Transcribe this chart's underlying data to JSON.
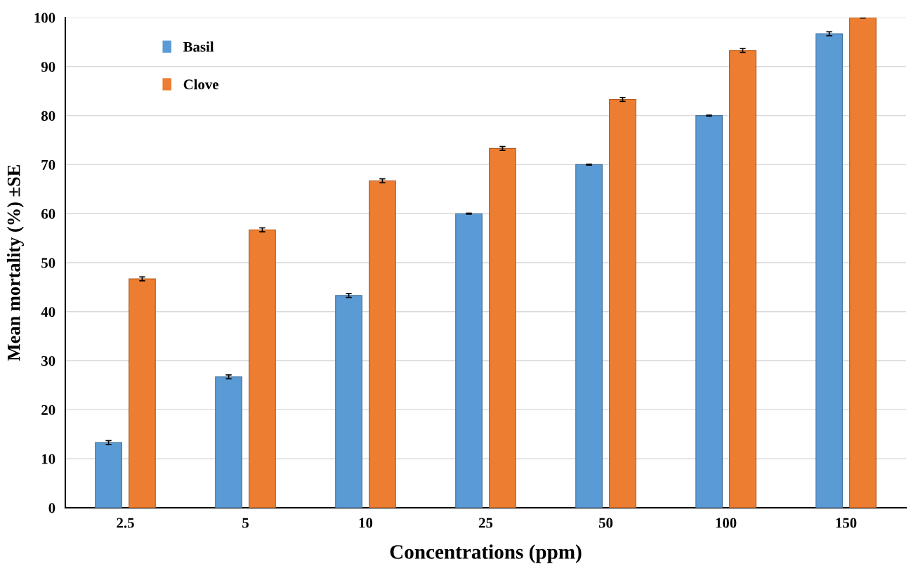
{
  "chart_data": {
    "type": "bar",
    "xlabel": "Concentrations (ppm)",
    "ylabel": "Mean mortality (%) ±SE",
    "categories": [
      "2.5",
      "5",
      "10",
      "25",
      "50",
      "100",
      "150"
    ],
    "series": [
      {
        "name": "Basil",
        "color": "#5b9bd5",
        "values": [
          13.3,
          26.7,
          43.3,
          60,
          70,
          80,
          96.7
        ],
        "errors": [
          0.4,
          0.4,
          0.4,
          0.1,
          0.1,
          0.1,
          0.4
        ]
      },
      {
        "name": "Clove",
        "color": "#ed7d31",
        "values": [
          46.7,
          56.7,
          66.7,
          73.3,
          83.3,
          93.3,
          100
        ],
        "errors": [
          0.4,
          0.4,
          0.4,
          0.4,
          0.4,
          0.4,
          0.1
        ]
      }
    ],
    "ylim": [
      0,
      100
    ],
    "yticks": [
      0,
      10,
      20,
      30,
      40,
      50,
      60,
      70,
      80,
      90,
      100
    ],
    "grid": "y",
    "legend": "top left"
  }
}
